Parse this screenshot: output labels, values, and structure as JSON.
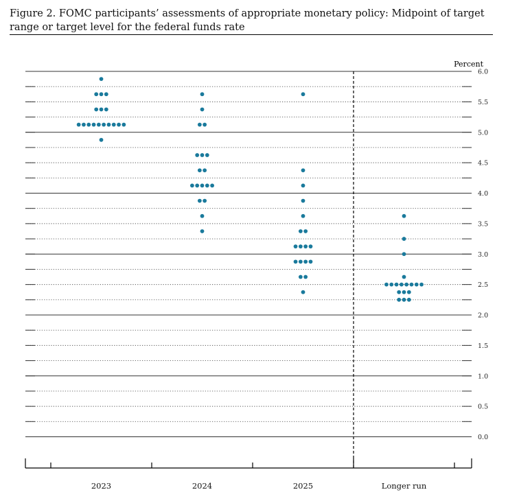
{
  "title": "Figure 2.  FOMC participants’ assessments of appropriate monetary policy:  Midpoint of target range or target level for the federal funds rate",
  "chart_data": {
    "type": "scatter",
    "subtype": "dot-plot",
    "unit_label": "Percent",
    "categories": [
      "2023",
      "2024",
      "2025",
      "Longer run"
    ],
    "ylim": [
      0,
      6.0
    ],
    "yticks": [
      "0.0",
      "0.5",
      "1.0",
      "1.5",
      "2.0",
      "2.5",
      "3.0",
      "3.5",
      "4.0",
      "4.5",
      "5.0",
      "5.5",
      "6.0"
    ],
    "grid": "dotted at every 0.25, solid at whole numbers",
    "y_axis_side": "right",
    "dot_color": "#1a7a9c",
    "separator": "dashed vertical line before Longer run",
    "dots": [
      {
        "category": "2023",
        "value": 5.875,
        "count": 1
      },
      {
        "category": "2023",
        "value": 5.625,
        "count": 3
      },
      {
        "category": "2023",
        "value": 5.375,
        "count": 3
      },
      {
        "category": "2023",
        "value": 5.125,
        "count": 10
      },
      {
        "category": "2023",
        "value": 4.875,
        "count": 1
      },
      {
        "category": "2024",
        "value": 5.625,
        "count": 1
      },
      {
        "category": "2024",
        "value": 5.375,
        "count": 1
      },
      {
        "category": "2024",
        "value": 5.125,
        "count": 2
      },
      {
        "category": "2024",
        "value": 4.625,
        "count": 3
      },
      {
        "category": "2024",
        "value": 4.375,
        "count": 2
      },
      {
        "category": "2024",
        "value": 4.125,
        "count": 5
      },
      {
        "category": "2024",
        "value": 3.875,
        "count": 2
      },
      {
        "category": "2024",
        "value": 3.625,
        "count": 1
      },
      {
        "category": "2024",
        "value": 3.375,
        "count": 1
      },
      {
        "category": "2025",
        "value": 5.625,
        "count": 1
      },
      {
        "category": "2025",
        "value": 4.375,
        "count": 1
      },
      {
        "category": "2025",
        "value": 4.125,
        "count": 1
      },
      {
        "category": "2025",
        "value": 3.875,
        "count": 1
      },
      {
        "category": "2025",
        "value": 3.625,
        "count": 1
      },
      {
        "category": "2025",
        "value": 3.375,
        "count": 2
      },
      {
        "category": "2025",
        "value": 3.125,
        "count": 4
      },
      {
        "category": "2025",
        "value": 2.875,
        "count": 4
      },
      {
        "category": "2025",
        "value": 2.625,
        "count": 2
      },
      {
        "category": "2025",
        "value": 2.375,
        "count": 1
      },
      {
        "category": "Longer run",
        "value": 3.625,
        "count": 1
      },
      {
        "category": "Longer run",
        "value": 3.25,
        "count": 1
      },
      {
        "category": "Longer run",
        "value": 3.0,
        "count": 1
      },
      {
        "category": "Longer run",
        "value": 2.625,
        "count": 1
      },
      {
        "category": "Longer run",
        "value": 2.5,
        "count": 8
      },
      {
        "category": "Longer run",
        "value": 2.375,
        "count": 3
      },
      {
        "category": "Longer run",
        "value": 2.25,
        "count": 3
      }
    ]
  }
}
